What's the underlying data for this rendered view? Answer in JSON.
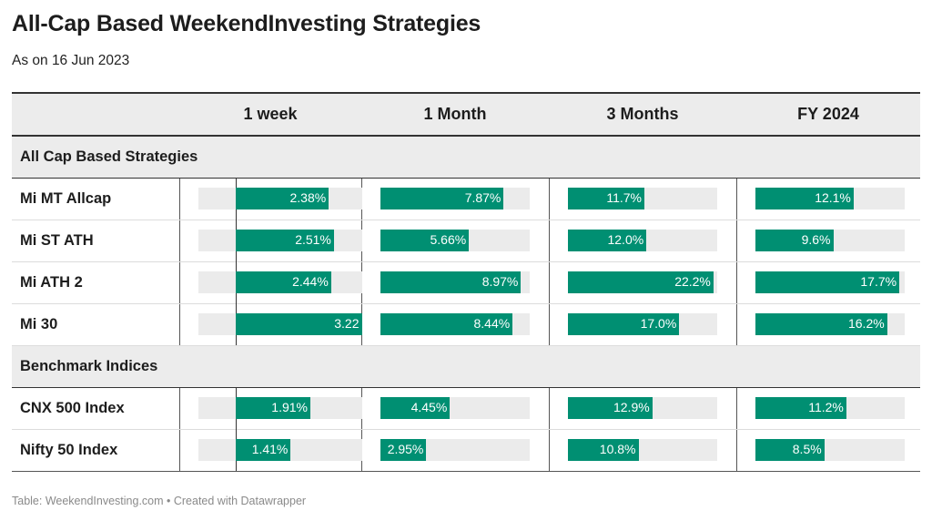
{
  "title": "All-Cap Based WeekendInvesting Strategies",
  "subtitle": "As on 16 Jun 2023",
  "footer": "Table: WeekendInvesting.com • Created with Datawrapper",
  "colors": {
    "bar": "#008f72",
    "track": "#ebebeb",
    "header_bg": "#ececec"
  },
  "chart_data": {
    "type": "table",
    "columns": [
      "1 week",
      "1 Month",
      "3 Months",
      "FY 2024"
    ],
    "groups": [
      {
        "name": "All Cap Based Strategies",
        "rows": [
          {
            "name": "Mi MT Allcap",
            "values": [
              2.38,
              7.87,
              11.7,
              12.1
            ],
            "labels": [
              "2.38%",
              "7.87%",
              "11.7%",
              "12.1%"
            ]
          },
          {
            "name": "Mi ST ATH",
            "values": [
              2.51,
              5.66,
              12.0,
              9.6
            ],
            "labels": [
              "2.51%",
              "5.66%",
              "12.0%",
              "9.6%"
            ]
          },
          {
            "name": "Mi ATH 2",
            "values": [
              2.44,
              8.97,
              22.2,
              17.7
            ],
            "labels": [
              "2.44%",
              "8.97%",
              "22.2%",
              "17.7%"
            ]
          },
          {
            "name": "Mi 30",
            "values": [
              3.22,
              8.44,
              17.0,
              16.2
            ],
            "labels": [
              "3.22",
              "8.44%",
              "17.0%",
              "16.2%"
            ]
          }
        ]
      },
      {
        "name": "Benchmark Indices",
        "rows": [
          {
            "name": "CNX 500 Index",
            "values": [
              1.91,
              4.45,
              12.9,
              11.2
            ],
            "labels": [
              "1.91%",
              "4.45%",
              "12.9%",
              "11.2%"
            ]
          },
          {
            "name": "Nifty 50 Index",
            "values": [
              1.41,
              2.95,
              10.8,
              8.5
            ],
            "labels": [
              "1.41%",
              "2.95%",
              "10.8%",
              "8.5%"
            ]
          }
        ]
      }
    ],
    "column_scales": [
      {
        "min": -0.5,
        "max": 3.22
      },
      {
        "min": 0,
        "max": 9.5
      },
      {
        "min": 0,
        "max": 22.7
      },
      {
        "min": 0,
        "max": 18.3
      }
    ]
  }
}
